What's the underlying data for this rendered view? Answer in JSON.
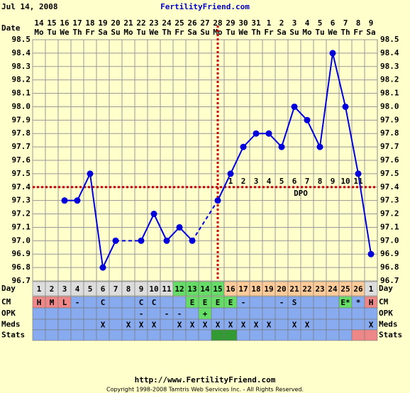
{
  "header": {
    "date": "Jul 14, 2008",
    "site": "FertilityFriend.com"
  },
  "chart_data": {
    "type": "line",
    "x_label": "Date",
    "categories": [
      "14",
      "15",
      "16",
      "17",
      "18",
      "19",
      "20",
      "21",
      "22",
      "23",
      "24",
      "25",
      "26",
      "27",
      "28",
      "29",
      "30",
      "31",
      "1",
      "2",
      "3",
      "4",
      "5",
      "6",
      "7",
      "8",
      "9"
    ],
    "weekdays": [
      "Mo",
      "Tu",
      "We",
      "Th",
      "Fr",
      "Sa",
      "Su",
      "Mo",
      "Tu",
      "We",
      "Th",
      "Fr",
      "Sa",
      "Su",
      "Mo",
      "Tu",
      "We",
      "Th",
      "Fr",
      "Sa",
      "Su",
      "Mo",
      "Tu",
      "We",
      "Th",
      "Fr",
      "Sa"
    ],
    "values": [
      null,
      null,
      97.3,
      97.3,
      97.5,
      96.8,
      97.0,
      null,
      97.0,
      97.2,
      97.0,
      97.1,
      97.0,
      null,
      97.3,
      97.5,
      97.7,
      97.8,
      97.8,
      97.7,
      98.0,
      97.9,
      97.7,
      98.4,
      98.0,
      97.5,
      96.9
    ],
    "color": "#0000dd",
    "ylim": [
      96.7,
      98.5
    ],
    "yticks": [
      96.7,
      96.8,
      96.9,
      {
        "value": 97.0,
        "label": "97.0"
      },
      97.1,
      97.2,
      97.3,
      97.4,
      97.5,
      97.6,
      97.7,
      97.8,
      97.9,
      {
        "value": 98.0,
        "label": "98.0"
      },
      98.1,
      98.2,
      98.3,
      98.4,
      98.5
    ],
    "grid": true,
    "coverline": 97.4,
    "ovulation_index": 14,
    "marker_color": "#cc0000",
    "dpo": [
      null,
      null,
      null,
      null,
      null,
      null,
      null,
      null,
      null,
      null,
      null,
      null,
      null,
      null,
      null,
      1,
      2,
      3,
      4,
      5,
      6,
      7,
      8,
      9,
      10,
      11,
      null
    ],
    "dpo_label": "DPO",
    "rows": [
      {
        "label": "Day",
        "color": "#dddddd",
        "cells": [
          1,
          2,
          3,
          4,
          5,
          6,
          7,
          8,
          9,
          10,
          11,
          12,
          13,
          14,
          15,
          16,
          17,
          18,
          19,
          20,
          21,
          22,
          23,
          24,
          25,
          26,
          1
        ],
        "cell_colors": [
          null,
          null,
          null,
          null,
          null,
          null,
          null,
          null,
          null,
          null,
          null,
          "#66dd66",
          "#66dd66",
          "#66dd66",
          "#66dd66",
          "#ffcc99",
          "#ffcc99",
          "#ffcc99",
          "#ffcc99",
          "#ffcc99",
          "#ffcc99",
          "#ffcc99",
          "#ffcc99",
          "#ffcc99",
          "#ffcc99",
          "#ffcc99",
          null
        ]
      },
      {
        "label": "CM",
        "color": "#88aaee",
        "cells": [
          "H",
          "M",
          "L",
          "-",
          null,
          "C",
          null,
          null,
          "C",
          "C",
          null,
          null,
          "E",
          "E",
          "E",
          "E",
          "-",
          null,
          null,
          "-",
          "S",
          null,
          null,
          null,
          "E*",
          "*",
          "H"
        ],
        "cell_colors": [
          "#ee8888",
          "#ee8888",
          "#ee8888",
          null,
          null,
          null,
          null,
          null,
          null,
          null,
          null,
          null,
          "#66dd66",
          "#66dd66",
          "#66dd66",
          "#66dd66",
          null,
          null,
          null,
          null,
          null,
          null,
          null,
          null,
          "#66dd66",
          null,
          "#ee8888"
        ]
      },
      {
        "label": "OPK",
        "color": "#88aaee",
        "cells": [
          null,
          null,
          null,
          null,
          null,
          null,
          null,
          null,
          "-",
          null,
          "-",
          "-",
          null,
          "+",
          null,
          null,
          null,
          null,
          null,
          null,
          null,
          null,
          null,
          null,
          null,
          null,
          null
        ],
        "cell_colors": [
          null,
          null,
          null,
          null,
          null,
          null,
          null,
          null,
          null,
          null,
          null,
          null,
          null,
          "#66dd66",
          null,
          null,
          null,
          null,
          null,
          null,
          null,
          null,
          null,
          null,
          null,
          null,
          null
        ]
      },
      {
        "label": "Meds",
        "color": "#88aaee",
        "cells": [
          null,
          null,
          null,
          null,
          null,
          "X",
          null,
          "X",
          "X",
          "X",
          null,
          "X",
          "X",
          "X",
          "X",
          "X",
          "X",
          "X",
          "X",
          null,
          "X",
          "X",
          null,
          null,
          null,
          null,
          "X"
        ]
      },
      {
        "label": "Stats",
        "color": "#88aaee",
        "cells": [
          null,
          null,
          null,
          null,
          null,
          null,
          null,
          null,
          null,
          null,
          null,
          null,
          null,
          null,
          null,
          null,
          null,
          null,
          null,
          null,
          null,
          null,
          null,
          null,
          null,
          null,
          null
        ],
        "cell_colors": [
          null,
          null,
          null,
          null,
          null,
          null,
          null,
          null,
          null,
          null,
          null,
          null,
          null,
          null,
          "#339933",
          "#339933",
          null,
          null,
          null,
          null,
          null,
          null,
          null,
          null,
          null,
          "#ee8888",
          "#ee8888"
        ]
      }
    ]
  },
  "footer": {
    "url": "http://www.FertilityFriend.com",
    "copyright": "Copyright 1998-2008 Tamtris Web Services Inc. - All Rights Reserved."
  }
}
